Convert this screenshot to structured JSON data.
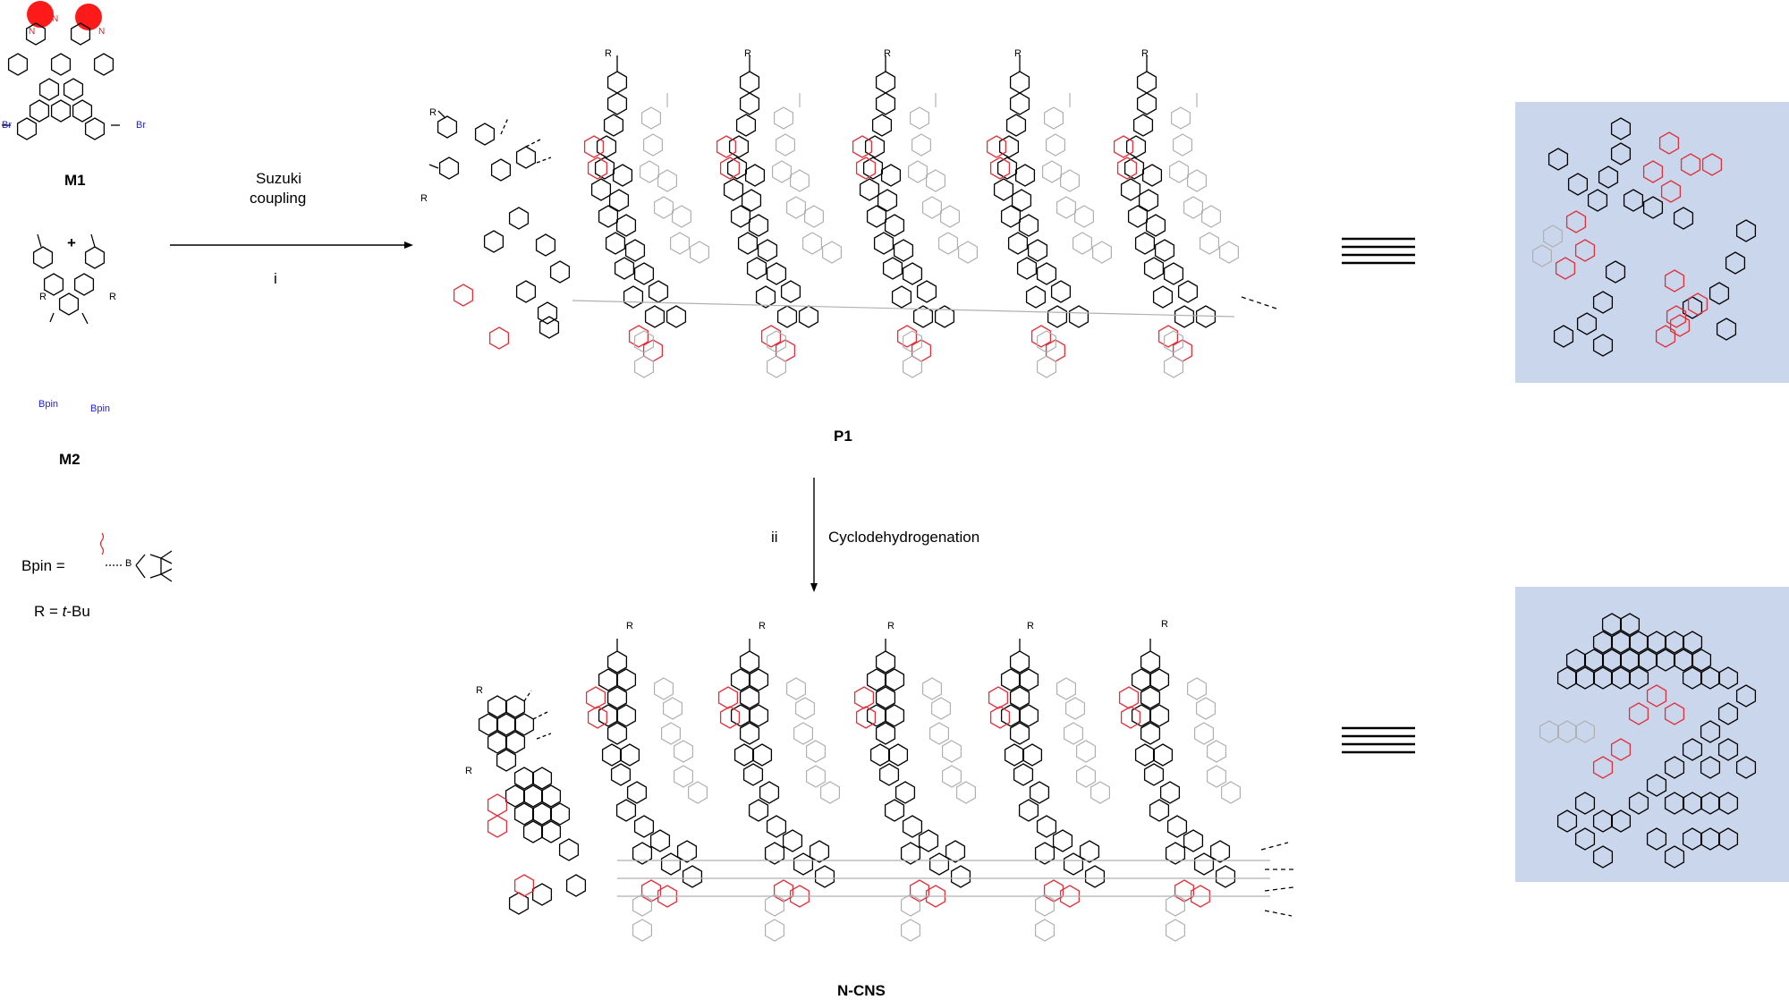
{
  "colors": {
    "accent_red": "#e02020",
    "bpin_blue": "#1f1fd6",
    "panel_bg": "#cad6ec",
    "faded_grey": "#b0b0b0"
  },
  "monomers": {
    "m1_label": "M1",
    "plus": "+",
    "m2_label": "M2",
    "br_left": "Br",
    "br_right": "Br",
    "bpin_left": "Bpin",
    "bpin_right": "Bpin",
    "r_left": "R",
    "r_right": "R"
  },
  "legend": {
    "bpin_def": "Bpin =",
    "b_atom": "B",
    "r_def_prefix": "R = ",
    "r_def_italic": "t",
    "r_def_suffix": "-Bu"
  },
  "step1": {
    "line1": "Suzuki",
    "line2": "coupling",
    "numeral": "i"
  },
  "step2": {
    "numeral": "ii",
    "label": "Cyclodehydrogenation"
  },
  "products": {
    "p1_label": "P1",
    "ncns_label": "N-CNS",
    "r_atom": "R",
    "n_atom": "N"
  }
}
